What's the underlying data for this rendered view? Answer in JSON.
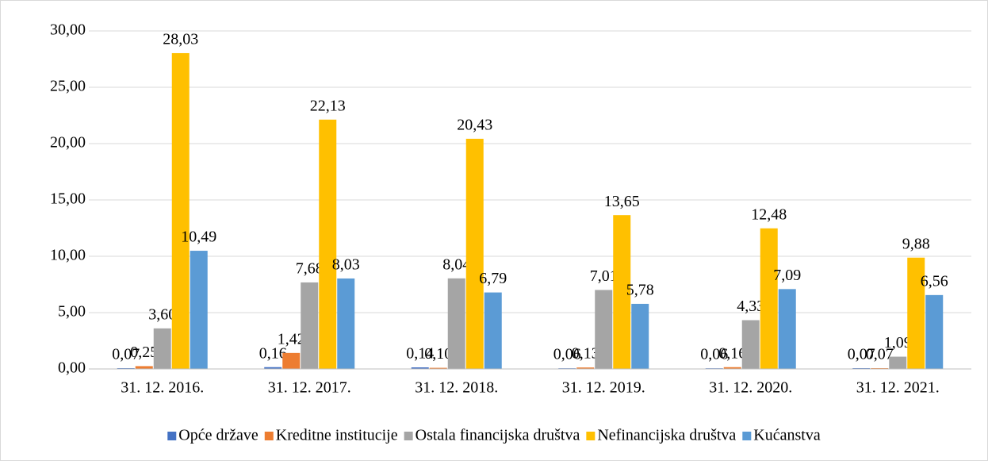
{
  "chart_data": {
    "type": "bar",
    "categories": [
      "31. 12. 2016.",
      "31. 12. 2017.",
      "31. 12. 2018.",
      "31. 12. 2019.",
      "31. 12. 2020.",
      "31. 12. 2021."
    ],
    "series": [
      {
        "name": "Opće države",
        "color": "#4472c4",
        "values": [
          0.07,
          0.16,
          0.14,
          0.06,
          0.06,
          0.07
        ],
        "value_labels": [
          "0,07",
          "0,16",
          "0,14",
          "0,06",
          "0,06",
          "0,07"
        ]
      },
      {
        "name": "Kreditne institucije",
        "color": "#ed7d31",
        "values": [
          0.25,
          1.42,
          0.1,
          0.13,
          0.16,
          0.07
        ],
        "value_labels": [
          "0,25",
          "1,42",
          "0,10",
          "0,13",
          "0,16",
          "0,07"
        ]
      },
      {
        "name": "Ostala financijska društva",
        "color": "#a5a5a5",
        "values": [
          3.6,
          7.68,
          8.04,
          7.01,
          4.33,
          1.09
        ],
        "value_labels": [
          "3,60",
          "7,68",
          "8,04",
          "7,01",
          "4,33",
          "1,09"
        ]
      },
      {
        "name": "Nefinancijska društva",
        "color": "#ffc000",
        "values": [
          28.03,
          22.13,
          20.43,
          13.65,
          12.48,
          9.88
        ],
        "value_labels": [
          "28,03",
          "22,13",
          "20,43",
          "13,65",
          "12,48",
          "9,88"
        ]
      },
      {
        "name": "Kućanstva",
        "color": "#5b9bd5",
        "values": [
          10.49,
          8.03,
          6.79,
          5.78,
          7.09,
          6.56
        ],
        "value_labels": [
          "10,49",
          "8,03",
          "6,79",
          "5,78",
          "7,09",
          "6,56"
        ]
      }
    ],
    "ylim": [
      0,
      30
    ],
    "yticks": [
      {
        "value": 0,
        "label": "0,00"
      },
      {
        "value": 5,
        "label": "5,00"
      },
      {
        "value": 10,
        "label": "10,00"
      },
      {
        "value": 15,
        "label": "15,00"
      },
      {
        "value": 20,
        "label": "20,00"
      },
      {
        "value": 25,
        "label": "25,00"
      },
      {
        "value": 30,
        "label": "30,00"
      }
    ],
    "grid": true,
    "legend": "bottom"
  }
}
